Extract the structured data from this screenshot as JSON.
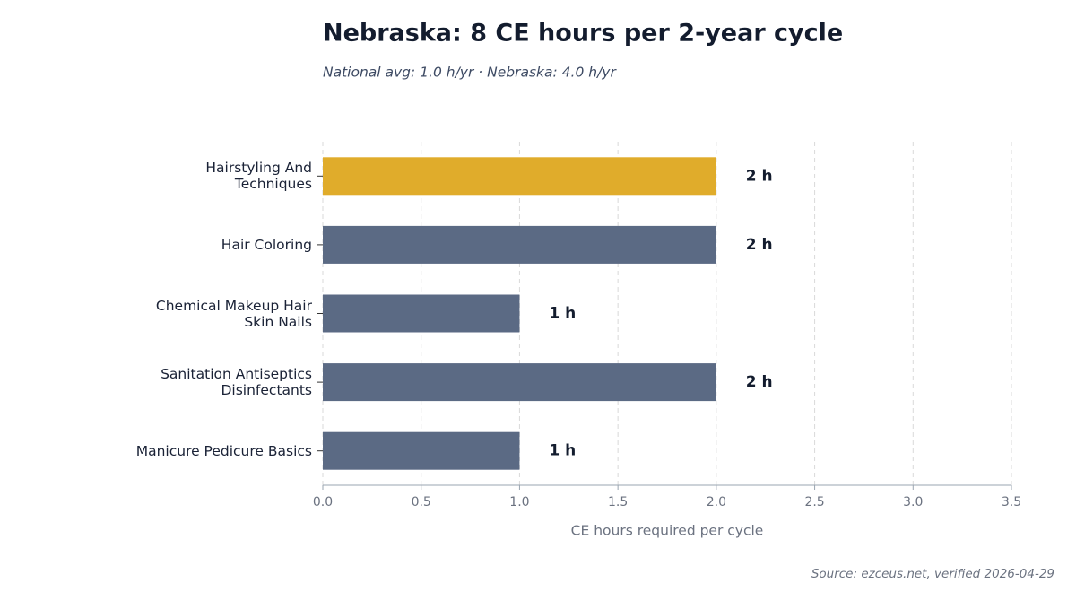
{
  "chart_data": {
    "type": "barh",
    "title": "Nebraska: 8 CE hours per 2-year cycle",
    "subtitle": "National avg: 1.0 h/yr · Nebraska: 4.0 h/yr",
    "xlabel": "CE hours required per cycle",
    "source": "Source: ezceus.net, verified 2026-04-29",
    "categories": [
      "Hairstyling And\nTechniques",
      "Hair Coloring",
      "Chemical Makeup Hair\nSkin Nails",
      "Sanitation Antiseptics\nDisinfectants",
      "Manicure Pedicure Basics"
    ],
    "values": [
      2,
      2,
      1,
      2,
      1
    ],
    "value_labels": [
      "2 h",
      "2 h",
      "1 h",
      "2 h",
      "1 h"
    ],
    "colors": [
      "#e0ac2b",
      "#5b6a84",
      "#5b6a84",
      "#5b6a84",
      "#5b6a84"
    ],
    "xlim": [
      0,
      3.5
    ],
    "xticks": [
      {
        "value": 0,
        "label": "0.0"
      },
      0.5,
      {
        "value": 1,
        "label": "1.0"
      },
      1.5,
      {
        "value": 2,
        "label": "2.0"
      },
      2.5,
      {
        "value": 3,
        "label": "3.0"
      },
      3.5
    ],
    "grid": true
  }
}
